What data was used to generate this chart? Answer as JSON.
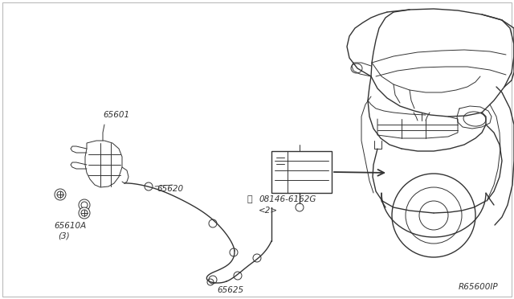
{
  "bg_color": "#ffffff",
  "line_color": "#333333",
  "label_color": "#333333",
  "fig_width": 6.4,
  "fig_height": 3.72,
  "dpi": 100,
  "diagram_code": "R65600IP",
  "border_color": "#bbbbbb"
}
